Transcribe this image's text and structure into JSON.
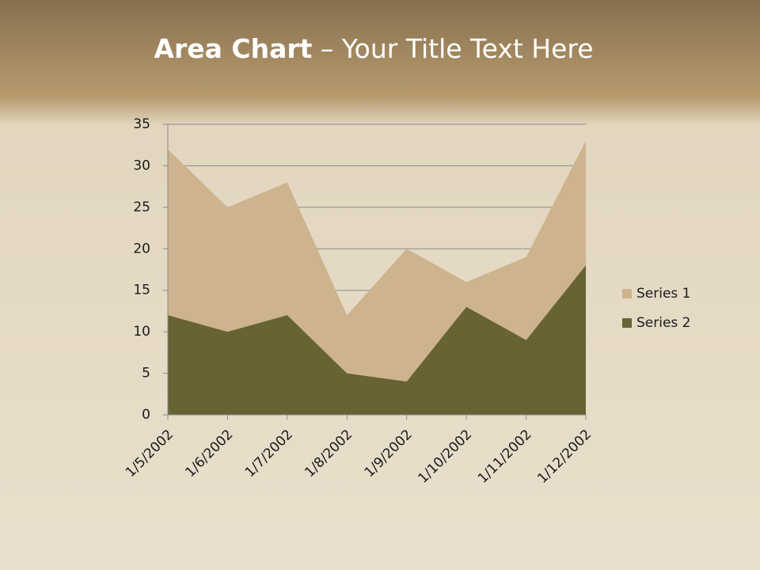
{
  "chart_data": {
    "type": "area",
    "title_bold": "Area Chart",
    "title": "– Your Title Text Here",
    "categories": [
      "1/5/2002",
      "1/6/2002",
      "1/7/2002",
      "1/8/2002",
      "1/9/2002",
      "1/10/2002",
      "1/11/2002",
      "1/12/2002"
    ],
    "series": [
      {
        "name": "Series 1",
        "color": "#cdb48e",
        "values": [
          32,
          25,
          28,
          12,
          20,
          16,
          19,
          33
        ]
      },
      {
        "name": "Series 2",
        "color": "#676333",
        "values": [
          12,
          10,
          12,
          5,
          4,
          13,
          9,
          18
        ]
      }
    ],
    "ylim": [
      0,
      35
    ],
    "yticks": [
      0,
      5,
      10,
      15,
      20,
      25,
      30,
      35
    ],
    "grid": true,
    "legend": "right"
  }
}
